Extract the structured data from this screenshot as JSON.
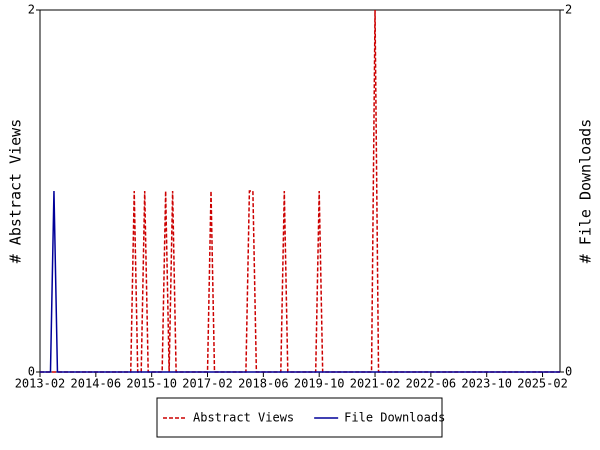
{
  "chart_data": {
    "type": "line",
    "x": [
      "2013-02",
      "2013-05",
      "2013-06",
      "2013-07",
      "2015-04",
      "2015-05",
      "2015-06",
      "2015-07",
      "2015-08",
      "2015-09",
      "2016-01",
      "2016-02",
      "2016-03",
      "2016-04",
      "2016-05",
      "2017-02",
      "2017-03",
      "2017-04",
      "2018-01",
      "2018-02",
      "2018-03",
      "2018-04",
      "2018-11",
      "2018-12",
      "2019-01",
      "2019-09",
      "2019-10",
      "2019-11",
      "2021-01",
      "2021-02",
      "2021-03",
      "2025-07"
    ],
    "series": [
      {
        "name": "Abstract Views",
        "color": "#cc0000",
        "line_style": "dashed",
        "values": [
          0,
          0,
          0,
          0,
          0,
          1,
          0,
          0,
          1,
          0,
          0,
          1,
          0,
          1,
          0,
          0,
          1,
          0,
          0,
          1,
          1,
          0,
          0,
          1,
          0,
          0,
          1,
          0,
          0,
          2,
          0,
          0
        ]
      },
      {
        "name": "File Downloads",
        "color": "#000099",
        "line_style": "solid",
        "axis": "y2",
        "values": [
          0,
          0,
          1,
          0,
          0,
          0,
          0,
          0,
          0,
          0,
          0,
          0,
          0,
          0,
          0,
          0,
          0,
          0,
          0,
          0,
          0,
          0,
          0,
          0,
          0,
          0,
          0,
          0,
          0,
          0,
          0,
          0
        ]
      }
    ],
    "xlim": [
      "2013-02",
      "2025-07"
    ],
    "xticks": [
      "2013-02",
      "2014-06",
      "2015-10",
      "2017-02",
      "2018-06",
      "2019-10",
      "2021-02",
      "2022-06",
      "2023-10",
      "2025-02"
    ],
    "ylim": [
      0,
      2
    ],
    "yticks": [
      0,
      2
    ],
    "y2lim": [
      0,
      2
    ],
    "y2ticks": [
      0,
      2
    ],
    "ylabel": "# Abstract Views",
    "y2label": "# File Downloads",
    "legend": "bottom"
  }
}
